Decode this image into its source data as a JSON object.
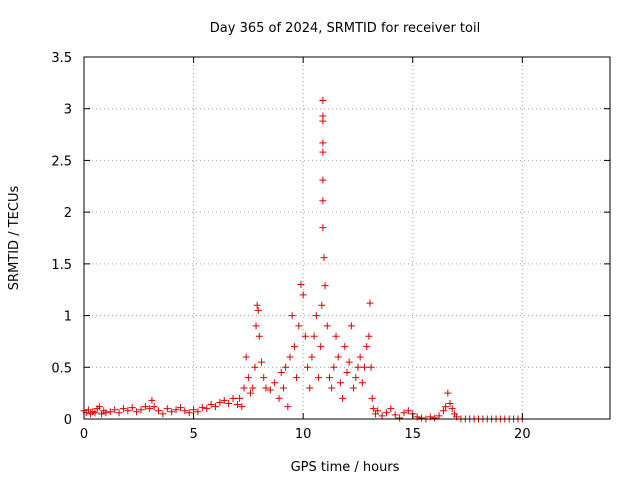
{
  "chart_data": {
    "type": "scatter",
    "title": "Day 365 of 2024, SRMTID for receiver toil",
    "xlabel": "GPS time / hours",
    "ylabel": "SRMTID / TECUs",
    "xlim": [
      0,
      24
    ],
    "ylim": [
      0,
      3.5
    ],
    "xticks": [
      0,
      5,
      10,
      15,
      20
    ],
    "yticks": [
      0,
      0.5,
      1,
      1.5,
      2,
      2.5,
      3,
      3.5
    ],
    "grid": true,
    "marker": "+",
    "color": "#dd0000",
    "series": [
      {
        "x": [
          0,
          0.1,
          0.2,
          0.3,
          0.4,
          0.5,
          0.6,
          0.7,
          0.8,
          0.9,
          1.0,
          1.2,
          1.4,
          1.6,
          1.8,
          2.0,
          2.2,
          2.4,
          2.6,
          2.8,
          3.0,
          3.1,
          3.2,
          3.4,
          3.6,
          3.8,
          4.0,
          4.2,
          4.4,
          4.6,
          4.8,
          5.0,
          5.2,
          5.4,
          5.6,
          5.8,
          6.0,
          6.2,
          6.4,
          6.6,
          6.8,
          7.0,
          7.1,
          7.2,
          7.3,
          7.4,
          7.5,
          7.6,
          7.7,
          7.8,
          7.85,
          7.9,
          7.95,
          8.0,
          8.1,
          8.2,
          8.3,
          8.5,
          8.7,
          8.9,
          9.0,
          9.1,
          9.2,
          9.3,
          9.4,
          9.5,
          9.6,
          9.7,
          9.8,
          9.9,
          10.0,
          10.1,
          10.2,
          10.3,
          10.4,
          10.5,
          10.6,
          10.7,
          10.8,
          10.85,
          10.9,
          10.9,
          10.9,
          10.9,
          10.9,
          10.9,
          10.9,
          10.9,
          10.95,
          11.0,
          11.1,
          11.2,
          11.3,
          11.4,
          11.5,
          11.6,
          11.7,
          11.8,
          11.9,
          12.0,
          12.1,
          12.2,
          12.3,
          12.4,
          12.5,
          12.6,
          12.7,
          12.8,
          12.9,
          13.0,
          13.05,
          13.1,
          13.15,
          13.2,
          13.3,
          13.4,
          13.6,
          13.8,
          14.0,
          14.2,
          14.4,
          14.6,
          14.8,
          15.0,
          15.2,
          15.4,
          15.6,
          15.8,
          16.0,
          16.2,
          16.4,
          16.5,
          16.6,
          16.7,
          16.8,
          16.9,
          17.0,
          17.2,
          17.4,
          17.6,
          17.8,
          18.0,
          18.2,
          18.4,
          18.6,
          18.8,
          19.0,
          19.2,
          19.4,
          19.6,
          19.8,
          20.0
        ],
        "y": [
          0.08,
          0.06,
          0.09,
          0.05,
          0.07,
          0.06,
          0.1,
          0.12,
          0.05,
          0.08,
          0.06,
          0.07,
          0.09,
          0.06,
          0.1,
          0.08,
          0.11,
          0.07,
          0.09,
          0.12,
          0.1,
          0.18,
          0.12,
          0.08,
          0.05,
          0.1,
          0.07,
          0.09,
          0.11,
          0.08,
          0.06,
          0.09,
          0.07,
          0.11,
          0.1,
          0.14,
          0.12,
          0.16,
          0.18,
          0.15,
          0.2,
          0.14,
          0.2,
          0.12,
          0.3,
          0.6,
          0.4,
          0.25,
          0.3,
          0.5,
          0.9,
          1.1,
          1.05,
          0.8,
          0.55,
          0.4,
          0.3,
          0.28,
          0.35,
          0.2,
          0.45,
          0.3,
          0.5,
          0.12,
          0.6,
          1.0,
          0.7,
          0.4,
          0.9,
          1.3,
          1.2,
          0.8,
          0.5,
          0.3,
          0.6,
          0.8,
          1.0,
          0.4,
          0.7,
          1.1,
          3.08,
          2.93,
          2.88,
          2.67,
          2.58,
          2.31,
          2.11,
          1.85,
          1.56,
          1.29,
          0.9,
          0.4,
          0.3,
          0.5,
          0.8,
          0.6,
          0.35,
          0.2,
          0.7,
          0.45,
          0.55,
          0.9,
          0.3,
          0.4,
          0.5,
          0.6,
          0.35,
          0.5,
          0.7,
          0.8,
          1.12,
          0.5,
          0.2,
          0.1,
          0.05,
          0.08,
          0.03,
          0.06,
          0.1,
          0.04,
          0.01,
          0.06,
          0.08,
          0.05,
          0.02,
          0.01,
          0.0,
          0.02,
          0.01,
          0.03,
          0.08,
          0.12,
          0.25,
          0.15,
          0.1,
          0.05,
          0.02,
          0.0,
          0.0,
          0.0,
          0.0,
          0.0,
          0.0,
          0.0,
          0.0,
          0.0,
          0.0,
          0.0,
          0.0,
          0.0,
          0.0,
          0.0
        ]
      }
    ]
  }
}
